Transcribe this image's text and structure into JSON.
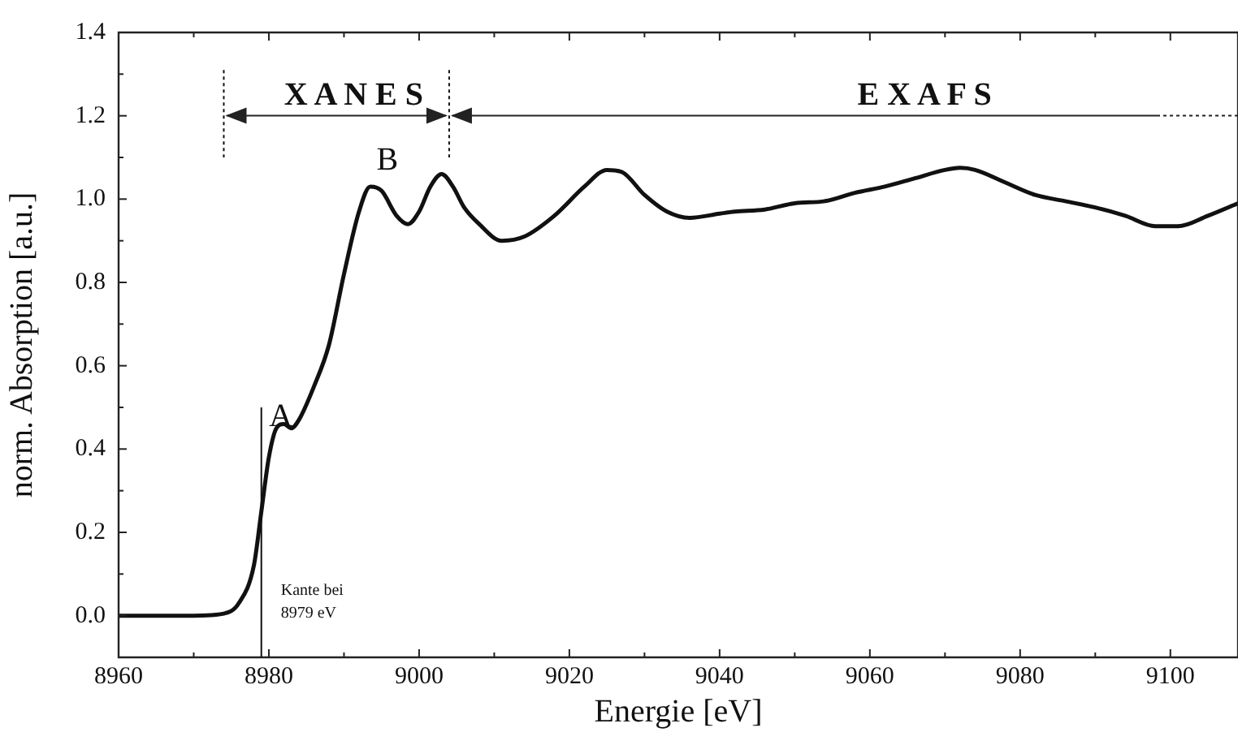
{
  "chart_data": {
    "type": "line",
    "xlabel": "Energie [eV]",
    "ylabel": "norm. Absorption [a.u.]",
    "xlim": [
      8960,
      9109
    ],
    "xticks": [
      8960,
      8980,
      9000,
      9020,
      9040,
      9060,
      9080,
      9100
    ],
    "ylim": [
      -0.1,
      1.4
    ],
    "yticks": [
      {
        "value": 0,
        "label": "0.0"
      },
      0.2,
      0.4,
      0.6,
      0.8,
      {
        "value": 1,
        "label": "1.0"
      },
      1.2,
      1.4
    ],
    "marker": "none",
    "line_style": "solid",
    "series": [
      {
        "color": "#111111",
        "x": [
          8960,
          8970,
          8974,
          8976,
          8978,
          8979,
          8980,
          8981,
          8982,
          8983,
          8984,
          8986,
          8988,
          8990,
          8992,
          8993.5,
          8995,
          8997,
          8998.5,
          9000,
          9001.5,
          9003,
          9004.5,
          9006,
          9008,
          9011,
          9014,
          9018,
          9022,
          9025,
          9027,
          9030,
          9033,
          9036,
          9040,
          9042,
          9046,
          9050,
          9054,
          9058,
          9062,
          9066,
          9070,
          9072,
          9074,
          9078,
          9082,
          9086,
          9090,
          9094,
          9098,
          9101,
          9105,
          9109
        ],
        "values": [
          0,
          0,
          0.005,
          0.03,
          0.12,
          0.25,
          0.38,
          0.45,
          0.46,
          0.45,
          0.47,
          0.55,
          0.65,
          0.82,
          0.97,
          1.03,
          1.02,
          0.96,
          0.94,
          0.97,
          1.03,
          1.06,
          1.03,
          0.98,
          0.94,
          0.9,
          0.91,
          0.96,
          1.03,
          1.07,
          1.065,
          1.01,
          0.97,
          0.955,
          0.965,
          0.97,
          0.975,
          0.99,
          0.995,
          1.015,
          1.03,
          1.05,
          1.07,
          1.075,
          1.07,
          1.04,
          1.01,
          0.995,
          0.98,
          0.96,
          0.935,
          0.935,
          0.96,
          0.99
        ]
      }
    ],
    "ref_lines": [
      {
        "axis": "x",
        "value": 8979,
        "label": "Kante bei 8979 eV",
        "line_style": "solid"
      },
      {
        "axis": "x",
        "value": 8974,
        "line_style": "dotted"
      },
      {
        "axis": "x",
        "value": 9004,
        "line_style": "dotted"
      }
    ],
    "annotations": [
      "A",
      "B",
      "X A N E S",
      "E X A F S"
    ]
  }
}
